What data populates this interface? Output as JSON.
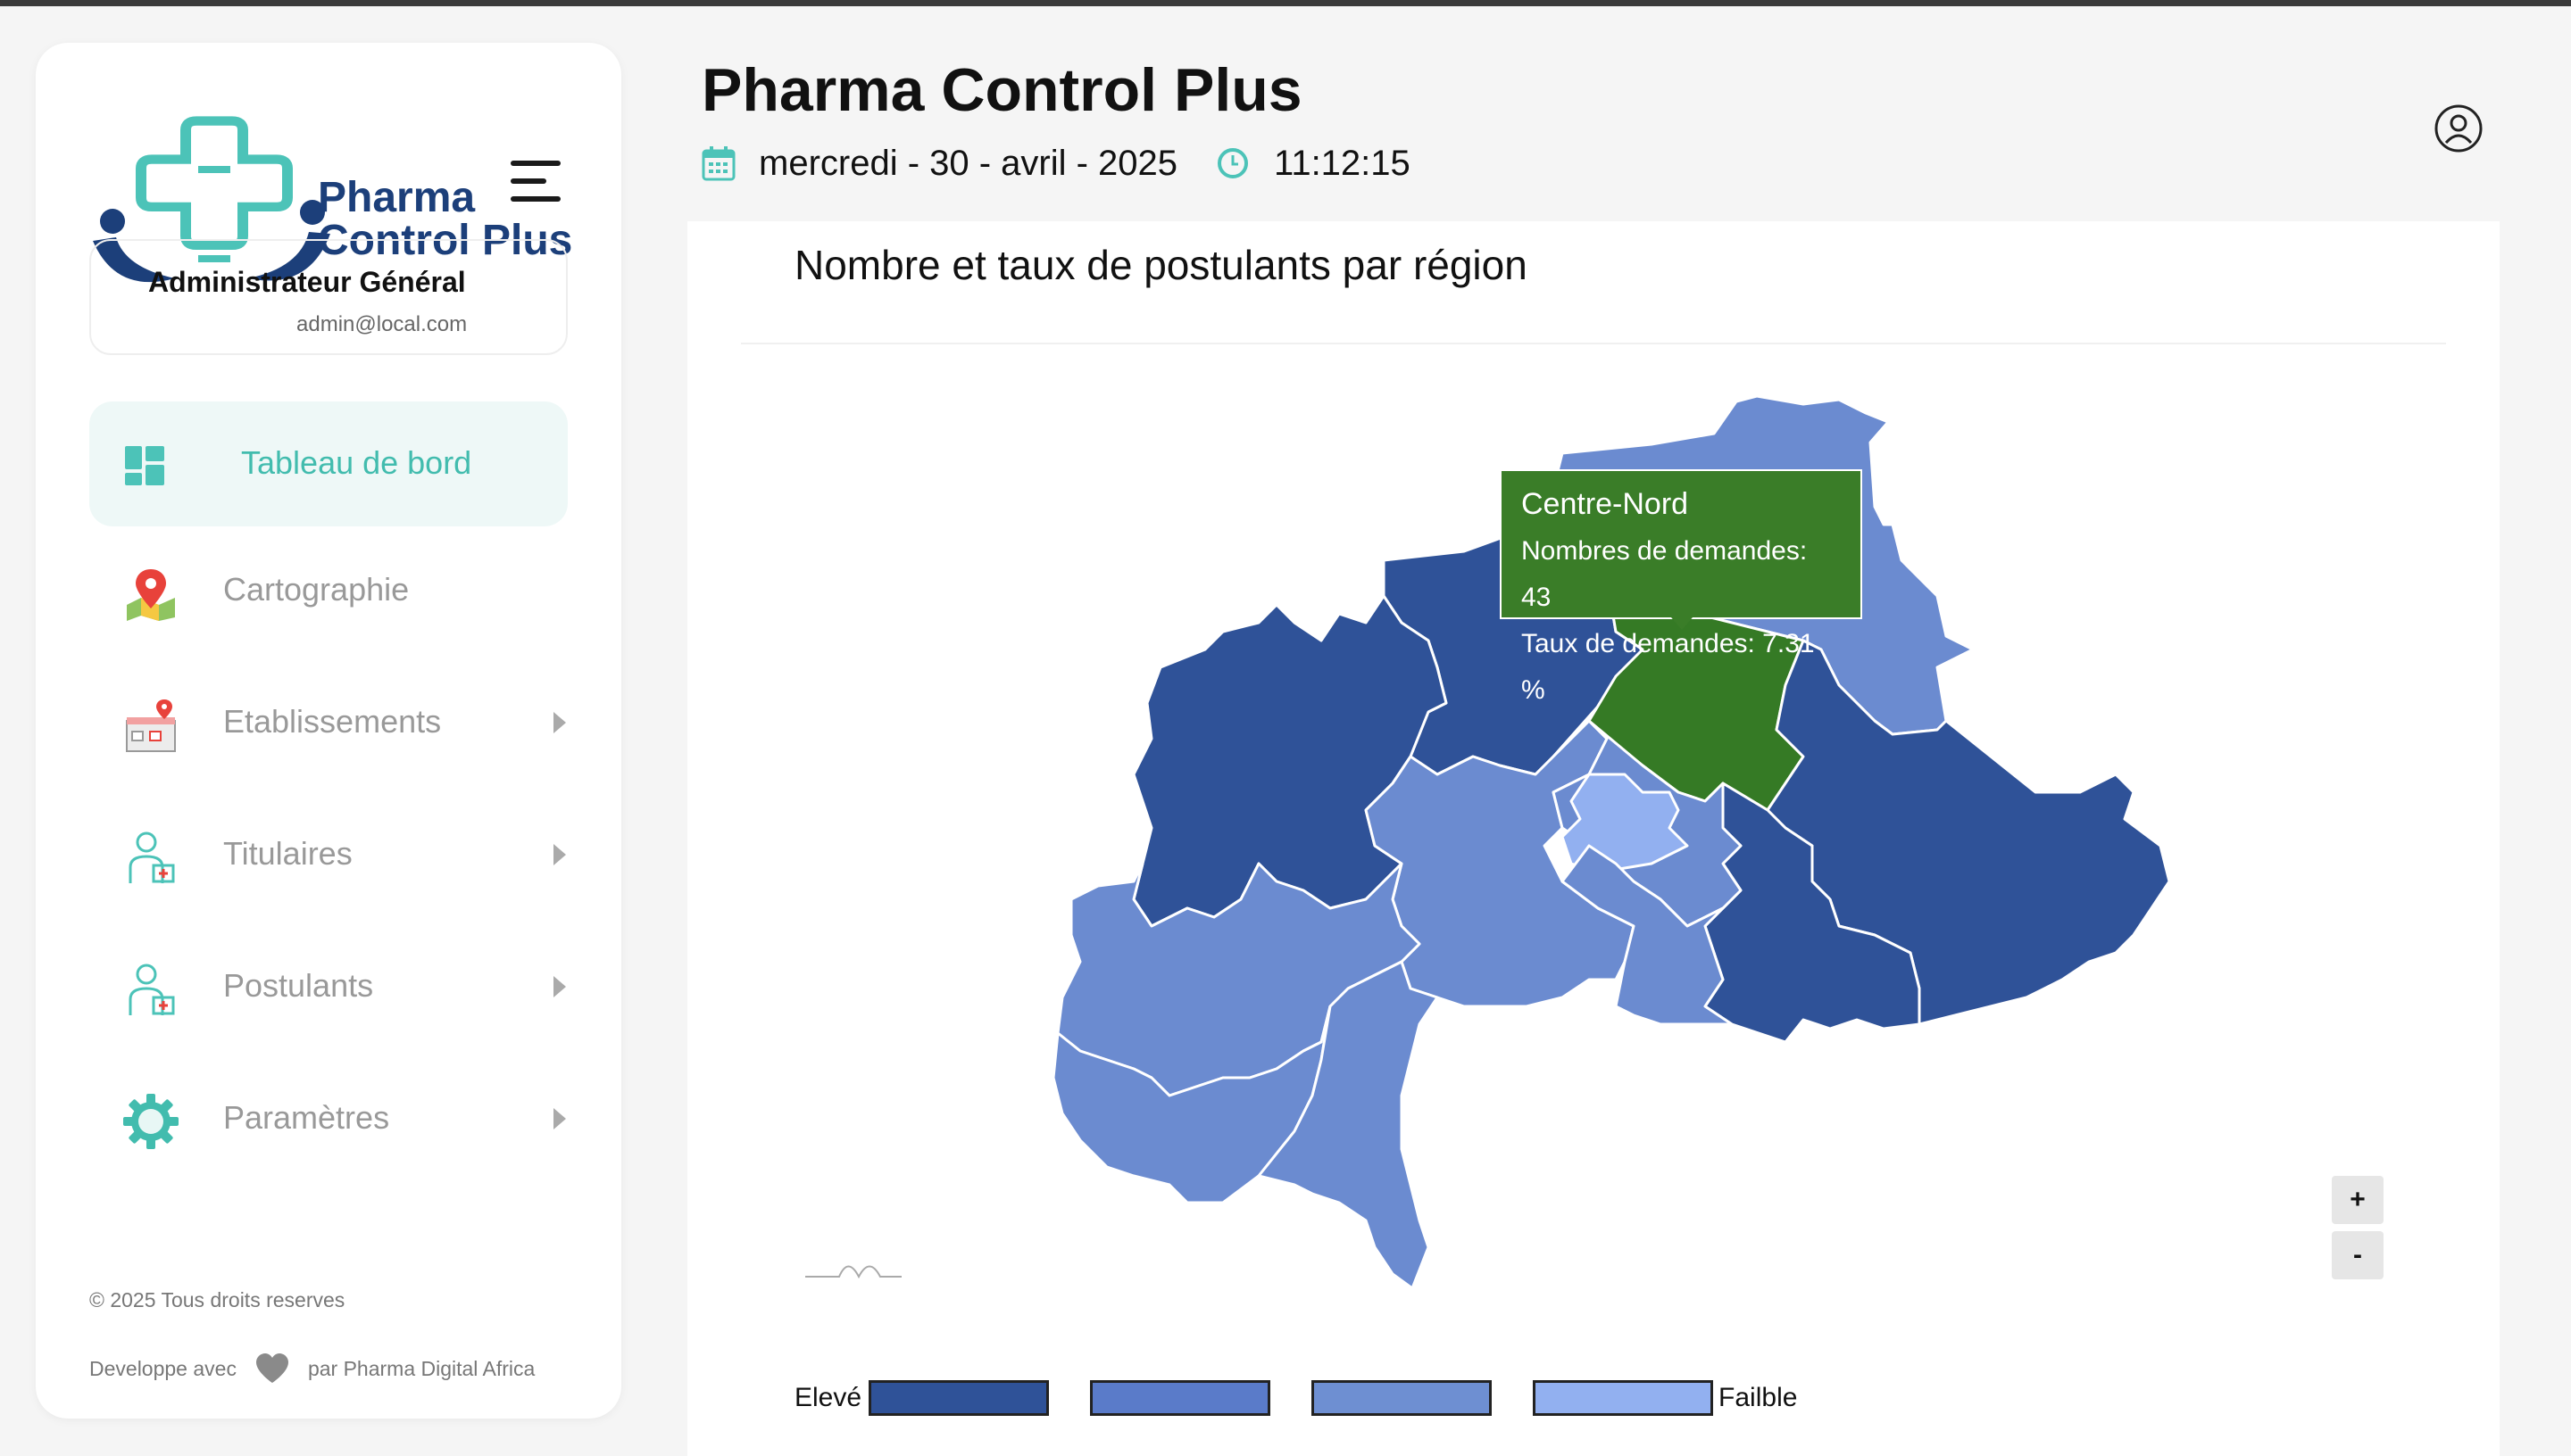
{
  "app": {
    "title": "Pharma Control Plus",
    "logo_line1": "Pharma",
    "logo_line2": "Control Plus"
  },
  "header": {
    "date": "mercredi - 30 - avril - 2025",
    "time": "11:12:15"
  },
  "user": {
    "role": "Administrateur Général",
    "email": "admin@local.com"
  },
  "sidebar": {
    "items": [
      {
        "label": "Tableau de bord",
        "icon": "dashboard-icon",
        "active": true
      },
      {
        "label": "Cartographie",
        "icon": "map-pin-icon"
      },
      {
        "label": "Etablissements",
        "icon": "store-icon"
      },
      {
        "label": "Titulaires",
        "icon": "pharmacist-icon"
      },
      {
        "label": "Postulants",
        "icon": "pharmacist-icon"
      },
      {
        "label": "Paramètres",
        "icon": "gear-icon"
      }
    ],
    "footer_copy": "© 2025 Tous droits reserves",
    "footer_dev_before": "Developpe avec",
    "footer_dev_after": "par Pharma Digital Africa"
  },
  "panel": {
    "title": "Nombre et taux de postulants par région",
    "zoom_in": "+",
    "zoom_out": "-",
    "tooltip": {
      "region": "Centre-Nord",
      "demandes": "Nombres de demandes: 43",
      "taux": "Taux de demandes: 7.31 %"
    },
    "legend": {
      "high": "Elevé",
      "low": "Failble",
      "colors": [
        "#2f5298",
        "#5a7bc9",
        "#6e8fd2",
        "#92b0f0"
      ]
    },
    "colors": {
      "dark": "#2f5298",
      "medium": "#6b8bd0",
      "light": "#92b0f0",
      "highlight": "#357a25"
    }
  }
}
